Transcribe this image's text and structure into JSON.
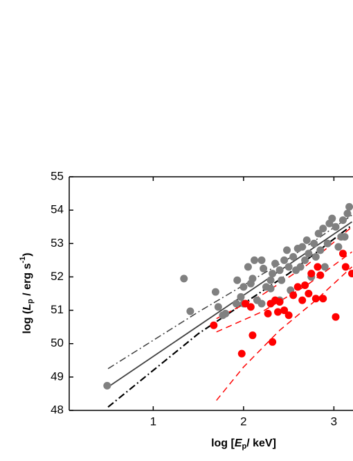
{
  "chart_data": {
    "type": "scatter",
    "x_label": {
      "prefix": "log [",
      "var": "E",
      "sub": "p",
      "suffix": "/ keV]"
    },
    "y_label": {
      "prefix": "log (",
      "var": "L",
      "sub": "p",
      "suffix": " / erg s",
      "sup": "-1",
      "close": ")"
    },
    "xlim": [
      0.07,
      3.2
    ],
    "ylim": [
      48,
      55
    ],
    "xticks": [
      1,
      2,
      3
    ],
    "yticks": [
      48,
      49,
      50,
      51,
      52,
      53,
      54,
      55
    ],
    "series": [
      {
        "kind": "points",
        "color": "#808080",
        "x": [
          0.49,
          1.41,
          1.34,
          1.69,
          1.72,
          1.8,
          1.77,
          1.92,
          1.93,
          1.97,
          2.0,
          2.05,
          2.08,
          2.1,
          2.12,
          2.15,
          2.2,
          2.22,
          2.25,
          2.3,
          2.32,
          2.35,
          2.4,
          2.42,
          2.45,
          2.48,
          2.5,
          2.52,
          2.55,
          2.58,
          2.6,
          2.63,
          2.65,
          2.68,
          2.7,
          2.72,
          2.75,
          2.78,
          2.8,
          2.83,
          2.85,
          2.88,
          2.9,
          2.93,
          2.95,
          2.98,
          3.02,
          3.05,
          3.08,
          3.1,
          3.12,
          3.15,
          3.17,
          2.4,
          2.3,
          2.0,
          2.2
        ],
        "values": [
          48.74,
          50.97,
          51.95,
          51.55,
          51.1,
          50.9,
          50.85,
          51.2,
          51.9,
          51.4,
          51.7,
          52.3,
          51.8,
          51.95,
          52.5,
          51.3,
          52.5,
          52.25,
          51.7,
          51.9,
          52.1,
          52.4,
          52.2,
          51.9,
          52.5,
          52.8,
          52.3,
          51.6,
          52.6,
          52.2,
          52.85,
          52.3,
          52.9,
          52.5,
          53.1,
          52.7,
          52.0,
          53.0,
          52.6,
          53.3,
          52.8,
          53.45,
          52.3,
          53.0,
          53.6,
          53.75,
          53.5,
          52.9,
          53.2,
          53.7,
          53.2,
          53.9,
          54.1,
          51.3,
          51.65,
          51.2,
          51.2
        ]
      },
      {
        "kind": "points",
        "color": "#ff0000",
        "x": [
          1.67,
          1.98,
          2.02,
          2.08,
          2.1,
          2.32,
          2.3,
          2.35,
          2.38,
          2.4,
          2.45,
          2.5,
          2.55,
          2.6,
          2.65,
          2.68,
          2.72,
          2.75,
          2.8,
          2.82,
          2.85,
          2.88,
          3.02,
          3.1,
          3.13,
          3.2,
          2.27
        ],
        "values": [
          50.55,
          49.7,
          51.2,
          51.1,
          50.25,
          50.05,
          51.2,
          51.3,
          50.95,
          51.25,
          51.0,
          50.85,
          51.45,
          51.7,
          51.3,
          51.75,
          51.5,
          52.1,
          51.35,
          52.3,
          52.05,
          51.35,
          50.8,
          52.7,
          52.3,
          52.1,
          50.9
        ]
      },
      {
        "kind": "line",
        "style": "solid",
        "color": "#404040",
        "x": [
          0.5,
          3.2
        ],
        "values": [
          48.7,
          53.65
        ]
      },
      {
        "kind": "line",
        "style": "dashdot",
        "color": "#404040",
        "x": [
          0.5,
          1.5,
          2.5,
          3.2
        ],
        "values": [
          49.25,
          50.95,
          52.55,
          53.85
        ]
      },
      {
        "kind": "line",
        "style": "dashdot-thick",
        "color": "#000000",
        "x": [
          0.5,
          1.5,
          2.5,
          3.2
        ],
        "values": [
          48.1,
          50.3,
          52.1,
          53.55
        ]
      },
      {
        "kind": "line",
        "style": "dashed",
        "color": "#ff0000",
        "x": [
          1.7,
          2.2,
          2.7,
          3.2
        ],
        "values": [
          50.75,
          51.45,
          52.35,
          53.5
        ]
      },
      {
        "kind": "line",
        "style": "dashed",
        "color": "#ff0000",
        "x": [
          1.7,
          2.2,
          2.7,
          3.2
        ],
        "values": [
          50.35,
          50.95,
          51.75,
          52.75
        ]
      },
      {
        "kind": "line",
        "style": "dashed",
        "color": "#ff0000",
        "x": [
          1.7,
          2.0,
          2.4,
          2.8,
          3.2
        ],
        "values": [
          48.3,
          49.3,
          50.4,
          51.3,
          52.3
        ]
      }
    ]
  }
}
